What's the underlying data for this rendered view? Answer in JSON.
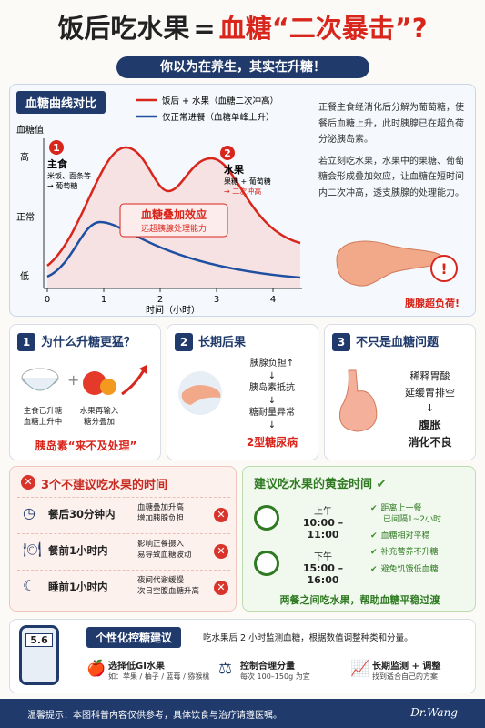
{
  "header": {
    "title_main": "饭后吃水果",
    "title_eq": "=",
    "title_red": "血糖“二次暴击”?",
    "subtitle": "你以为在养生，其实在升糖！"
  },
  "curve_section": {
    "heading": "血糖曲线对比",
    "legend": [
      "饭后 + 水果（血糖二次冲高）",
      "仅正常进餐（血糖单峰上升）"
    ],
    "y_title": "血糖值",
    "y_levels": [
      "高",
      "正常",
      "低"
    ],
    "x_title": "时间（小时）",
    "xticks": [
      0,
      1,
      2,
      3,
      4
    ],
    "note1": {
      "num": "1",
      "title": "主食",
      "lines": [
        "米饭、面条等",
        "→ 葡萄糖"
      ]
    },
    "note2": {
      "num": "2",
      "title": "水果",
      "lines": [
        "果糖 + 葡萄糖",
        "→ 二次冲高"
      ]
    },
    "effect_box": [
      "血糖叠加效应",
      "远超胰腺处理能力"
    ],
    "explanation": [
      "正餐主食经消化后分解为葡萄糖，使餐后血糖上升，此时胰腺已在超负荷分泌胰岛素。",
      "若立刻吃水果，水果中的果糖、葡萄糖会形成叠加效应，让血糖在短时间内二次冲高，透支胰腺的处理能力。"
    ],
    "pancreas_label": "胰腺超负荷!"
  },
  "cards": [
    {
      "num": "1",
      "title": "为什么升糖更猛？",
      "captions": [
        [
          "主食已升糖",
          "血糖上升中"
        ],
        [
          "水果再输入",
          "糖分叠加"
        ]
      ],
      "footer": "胰岛素“来不及处理”"
    },
    {
      "num": "2",
      "title": "长期后果",
      "steps": [
        "胰腺负担↑",
        "胰岛素抵抗",
        "糖耐量异常"
      ],
      "footer": "2型糖尿病"
    },
    {
      "num": "3",
      "title": "不只是血糖问题",
      "lines": [
        "稀释胃酸",
        "延缓胃排空",
        "腹胀",
        "消化不良"
      ]
    }
  ],
  "avoid_times": {
    "title": "3个不建议吃水果的时间",
    "rows": [
      {
        "time": "餐后30分钟内",
        "reason": [
          "血糖叠加升高",
          "增加胰腺负担"
        ]
      },
      {
        "time": "餐前1小时内",
        "reason": [
          "影响正餐摄入",
          "易导致血糖波动"
        ]
      },
      {
        "time": "睡前1小时内",
        "reason": [
          "夜间代谢缓慢",
          "次日空腹血糖升高"
        ]
      }
    ]
  },
  "golden_times": {
    "title": "建议吃水果的黄金时间",
    "slots": [
      {
        "label": "上午",
        "range": "10:00 – 11:00"
      },
      {
        "label": "下午",
        "range": "15:00 – 16:00"
      }
    ],
    "checks": [
      [
        "距离上一餐",
        "已间隔1~2小时"
      ],
      [
        "血糖相对平稳"
      ],
      [
        "补充营养不升糖"
      ],
      [
        "避免饥饿低血糖"
      ]
    ],
    "footer": "两餐之间吃水果，帮助血糖平稳过渡"
  },
  "advice": {
    "meter": "5.6",
    "title": "个性化控糖建议",
    "intro": "吃水果后 2 小时监测血糖，根据数值调整种类和分量。",
    "items": [
      {
        "title": "选择低GI水果",
        "detail": "如：苹果 / 柚子 / 蓝莓 / 猕猴桃"
      },
      {
        "title": "控制合理分量",
        "detail": "每次 100–150g 为宜"
      },
      {
        "title": "长期监测 + 调整",
        "detail": "找到适合自己的方案"
      }
    ]
  },
  "footer": {
    "tip": "温馨提示：本图科普内容仅供参考，具体饮食与治疗请遵医嘱。",
    "signature": "Dr.Wang"
  }
}
